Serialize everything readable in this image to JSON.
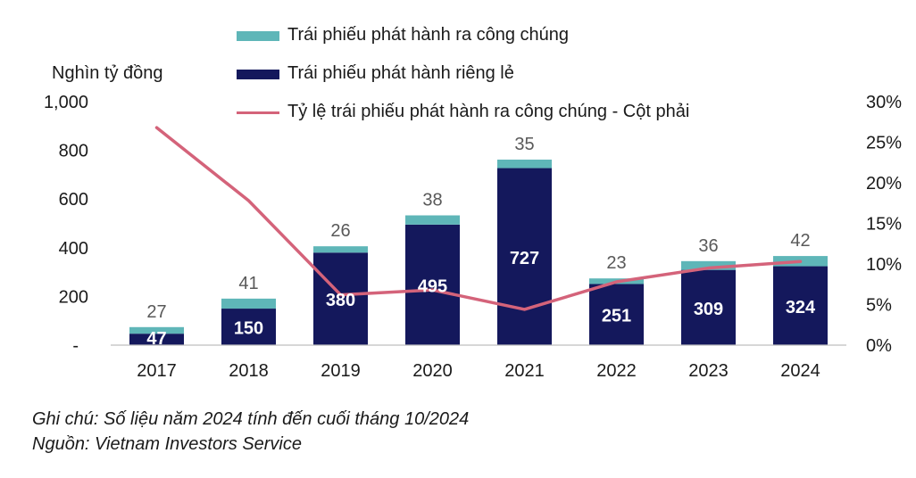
{
  "chart_data": {
    "type": "bar",
    "stacked": true,
    "y_unit_label": "Nghìn tỷ đồng",
    "categories": [
      "2017",
      "2018",
      "2019",
      "2020",
      "2021",
      "2022",
      "2023",
      "2024"
    ],
    "series": [
      {
        "name": "Trái phiếu phát hành ra công chúng",
        "values": [
          27,
          41,
          26,
          38,
          35,
          23,
          36,
          42
        ],
        "color": "#5fb6b8",
        "axis": "left"
      },
      {
        "name": "Trái phiếu phát hành riêng lẻ",
        "values": [
          47,
          150,
          380,
          495,
          727,
          251,
          309,
          324
        ],
        "color": "#14185c",
        "axis": "left"
      },
      {
        "name": "Tỷ lệ trái phiếu phát hành ra công chúng - Cột phải",
        "type": "line",
        "values": [
          26.8,
          17.8,
          6.2,
          6.8,
          4.4,
          7.8,
          9.5,
          10.3
        ],
        "color": "#d4637a",
        "axis": "right"
      }
    ],
    "ylim": [
      0,
      1000
    ],
    "y_ticks": [
      "-",
      "200",
      "400",
      "600",
      "800",
      "1,000"
    ],
    "y2lim": [
      0,
      30
    ],
    "y2_ticks": [
      "0%",
      "5%",
      "10%",
      "15%",
      "20%",
      "25%",
      "30%"
    ],
    "grid": false,
    "legend_position": "top"
  },
  "notes": {
    "line1": "Ghi chú: Số liệu năm 2024 tính đến cuối tháng 10/2024",
    "line2": "Nguồn: Vietnam Investors Service"
  }
}
